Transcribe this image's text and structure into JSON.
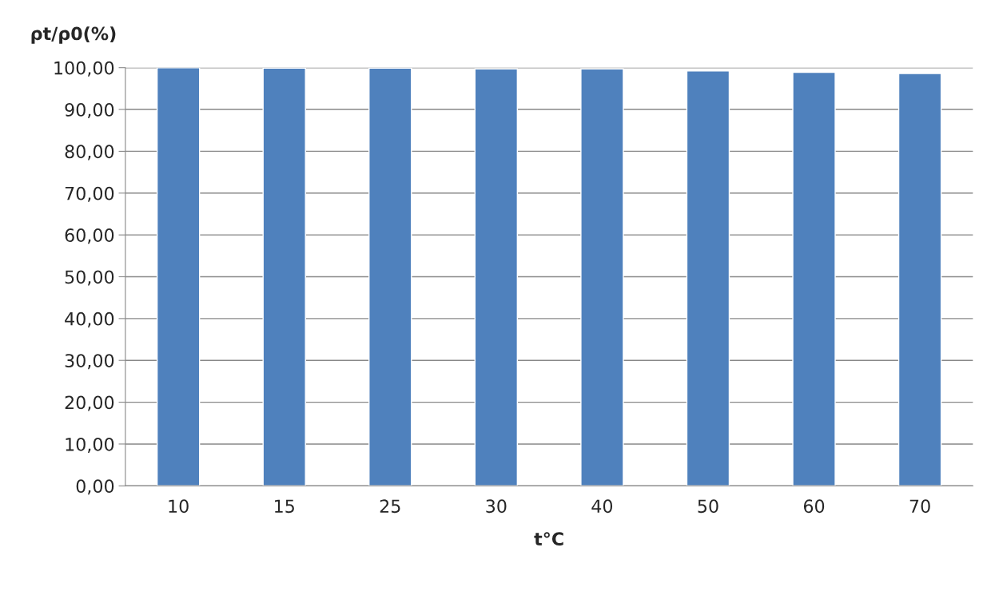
{
  "chart_data": {
    "type": "bar",
    "ylabel": "ρt/ρ0(%)",
    "xlabel": "t°C",
    "categories": [
      "10",
      "15",
      "25",
      "30",
      "40",
      "50",
      "60",
      "70"
    ],
    "values": [
      100.0,
      99.9,
      99.9,
      99.7,
      99.7,
      99.2,
      98.9,
      98.6
    ],
    "color": "#4f81bd",
    "ylim": [
      0,
      100
    ],
    "yticks": [
      {
        "value": 0,
        "label": "0,00"
      },
      {
        "value": 10,
        "label": "10,00"
      },
      {
        "value": 20,
        "label": "20,00"
      },
      {
        "value": 30,
        "label": "30,00"
      },
      {
        "value": 40,
        "label": "40,00"
      },
      {
        "value": 50,
        "label": "50,00"
      },
      {
        "value": 60,
        "label": "60,00"
      },
      {
        "value": 70,
        "label": "70,00"
      },
      {
        "value": 80,
        "label": "80,00"
      },
      {
        "value": 90,
        "label": "90,00"
      },
      {
        "value": 100,
        "label": "100,00"
      }
    ],
    "grid": "y"
  }
}
